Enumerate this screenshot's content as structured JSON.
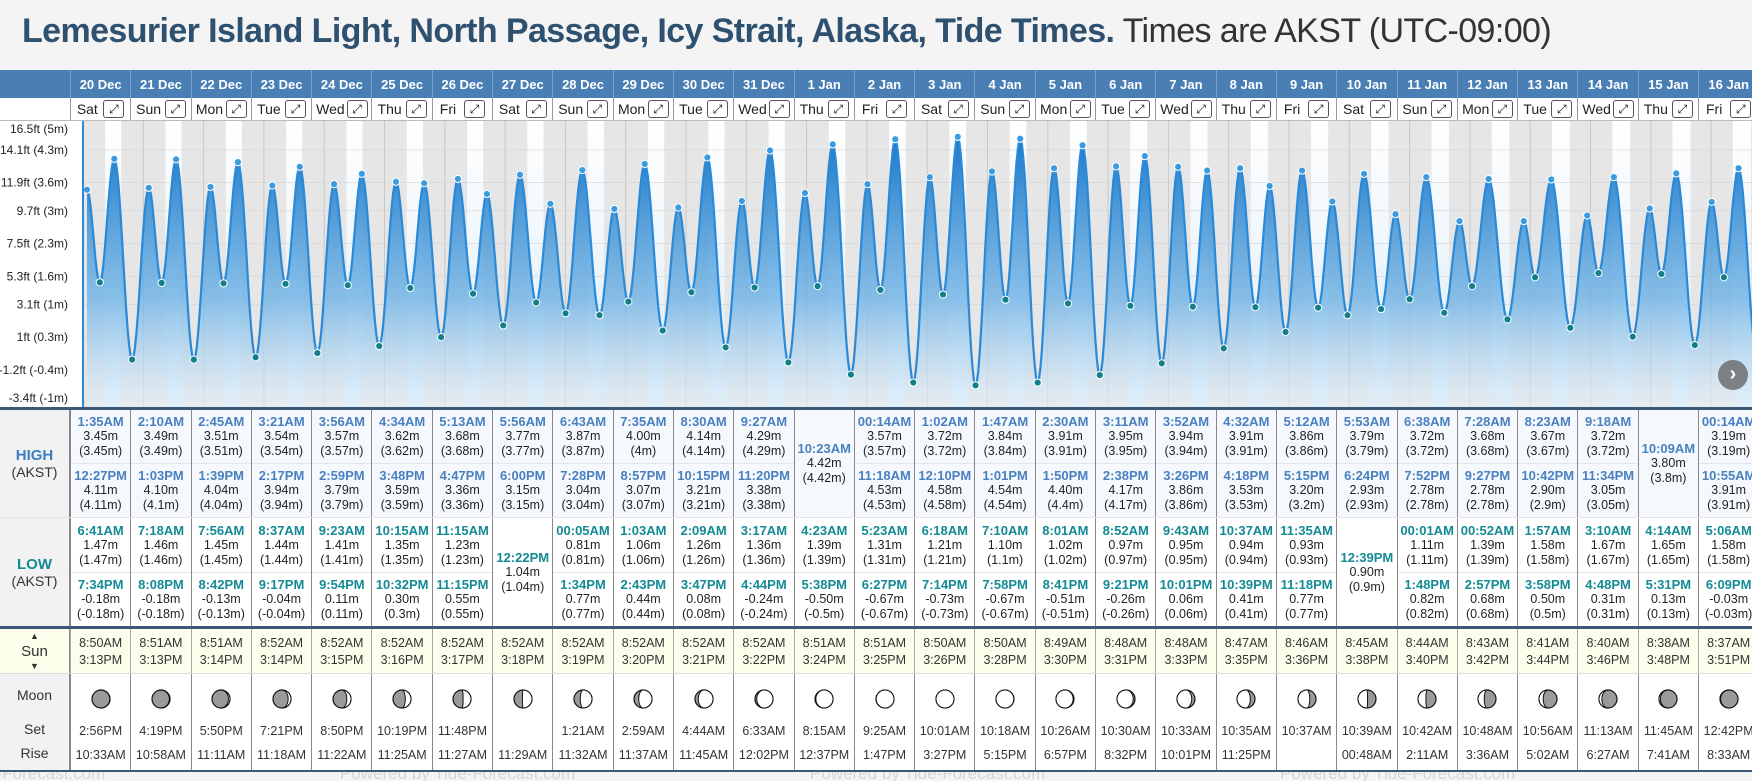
{
  "title": {
    "location": "Lemesurier Island Light, North Passage, Icy Strait, Alaska, Tide Times.",
    "timezone": "Times are AKST (UTC-09:00)"
  },
  "labels": {
    "high": "HIGH",
    "low": "LOW",
    "tz": "(AKST)",
    "sun": "Sun",
    "sun_up": "▲",
    "sun_down": "▼",
    "moon": "Moon",
    "set": "Set",
    "rise": "Rise",
    "expand": "⤢",
    "next": "›"
  },
  "footer": "Powered by Tide-Forecast.com",
  "colors": {
    "header": "#4a7fb5",
    "high": "#4a80c0",
    "low": "#138a94",
    "curve": "#2a8ad8"
  },
  "chart_data": {
    "type": "area",
    "ylabel": "Tide height",
    "y_ticks": [
      "16.5ft (5m)",
      "14.1ft (4.3m)",
      "11.9ft (3.6m)",
      "9.7ft (3m)",
      "7.5ft (2.3m)",
      "5.3ft (1.6m)",
      "3.1ft (1m)",
      "1ft (0.3m)",
      "-1.2ft (-0.4m)",
      "-3.4ft (-1m)"
    ],
    "y_tick_m": [
      5,
      4.3,
      3.6,
      3,
      2.3,
      1.6,
      1,
      0.3,
      -0.4,
      -1
    ],
    "ylim_m": [
      -1,
      5
    ]
  },
  "days": [
    {
      "date": "20 Dec",
      "dow": "Sat",
      "highs": [
        [
          "1:35AM",
          "3.45m",
          "(3.45m)"
        ],
        [
          "12:27PM",
          "4.11m",
          "(4.11m)"
        ]
      ],
      "lows": [
        [
          "6:41AM",
          "1.47m",
          "(1.47m)"
        ],
        [
          "7:34PM",
          "-0.18m",
          "(-0.18m)"
        ]
      ],
      "sunrise": "8:50AM",
      "sunset": "3:13PM",
      "moonset": "2:56PM",
      "moonrise": "10:33AM",
      "moon_phase": 0.03
    },
    {
      "date": "21 Dec",
      "dow": "Sun",
      "highs": [
        [
          "2:10AM",
          "3.49m",
          "(3.49m)"
        ],
        [
          "1:03PM",
          "4.10m",
          "(4.1m)"
        ]
      ],
      "lows": [
        [
          "7:18AM",
          "1.46m",
          "(1.46m)"
        ],
        [
          "8:08PM",
          "-0.18m",
          "(-0.18m)"
        ]
      ],
      "sunrise": "8:51AM",
      "sunset": "3:13PM",
      "moonset": "4:19PM",
      "moonrise": "10:58AM",
      "moon_phase": 0.06
    },
    {
      "date": "22 Dec",
      "dow": "Mon",
      "highs": [
        [
          "2:45AM",
          "3.51m",
          "(3.51m)"
        ],
        [
          "1:39PM",
          "4.04m",
          "(4.04m)"
        ]
      ],
      "lows": [
        [
          "7:56AM",
          "1.45m",
          "(1.45m)"
        ],
        [
          "8:42PM",
          "-0.13m",
          "(-0.13m)"
        ]
      ],
      "sunrise": "8:51AM",
      "sunset": "3:14PM",
      "moonset": "5:50PM",
      "moonrise": "11:11AM",
      "moon_phase": 0.095
    },
    {
      "date": "23 Dec",
      "dow": "Tue",
      "highs": [
        [
          "3:21AM",
          "3.54m",
          "(3.54m)"
        ],
        [
          "2:17PM",
          "3.94m",
          "(3.94m)"
        ]
      ],
      "lows": [
        [
          "8:37AM",
          "1.44m",
          "(1.44m)"
        ],
        [
          "9:17PM",
          "-0.04m",
          "(-0.04m)"
        ]
      ],
      "sunrise": "8:52AM",
      "sunset": "3:14PM",
      "moonset": "7:21PM",
      "moonrise": "11:18AM",
      "moon_phase": 0.13
    },
    {
      "date": "24 Dec",
      "dow": "Wed",
      "highs": [
        [
          "3:56AM",
          "3.57m",
          "(3.57m)"
        ],
        [
          "2:59PM",
          "3.79m",
          "(3.79m)"
        ]
      ],
      "lows": [
        [
          "9:23AM",
          "1.41m",
          "(1.41m)"
        ],
        [
          "9:54PM",
          "0.11m",
          "(0.11m)"
        ]
      ],
      "sunrise": "8:52AM",
      "sunset": "3:15PM",
      "moonset": "8:50PM",
      "moonrise": "11:22AM",
      "moon_phase": 0.16
    },
    {
      "date": "25 Dec",
      "dow": "Thu",
      "highs": [
        [
          "4:34AM",
          "3.62m",
          "(3.62m)"
        ],
        [
          "3:48PM",
          "3.59m",
          "(3.59m)"
        ]
      ],
      "lows": [
        [
          "10:15AM",
          "1.35m",
          "(1.35m)"
        ],
        [
          "10:32PM",
          "0.30m",
          "(0.3m)"
        ]
      ],
      "sunrise": "8:52AM",
      "sunset": "3:16PM",
      "moonset": "10:19PM",
      "moonrise": "11:25AM",
      "moon_phase": 0.19
    },
    {
      "date": "26 Dec",
      "dow": "Fri",
      "highs": [
        [
          "5:13AM",
          "3.68m",
          "(3.68m)"
        ],
        [
          "4:47PM",
          "3.36m",
          "(3.36m)"
        ]
      ],
      "lows": [
        [
          "11:15AM",
          "1.23m",
          "(1.23m)"
        ],
        [
          "11:15PM",
          "0.55m",
          "(0.55m)"
        ]
      ],
      "sunrise": "8:52AM",
      "sunset": "3:17PM",
      "moonset": "11:48PM",
      "moonrise": "11:27AM",
      "moon_phase": 0.23
    },
    {
      "date": "27 Dec",
      "dow": "Sat",
      "highs": [
        [
          "5:56AM",
          "3.77m",
          "(3.77m)"
        ],
        [
          "6:00PM",
          "3.15m",
          "(3.15m)"
        ]
      ],
      "lows": [
        [
          "12:22PM",
          "1.04m",
          "(1.04m)"
        ]
      ],
      "sunrise": "8:52AM",
      "sunset": "3:18PM",
      "moonset": "",
      "moonrise": "11:29AM",
      "moon_phase": 0.26
    },
    {
      "date": "28 Dec",
      "dow": "Sun",
      "highs": [
        [
          "6:43AM",
          "3.87m",
          "(3.87m)"
        ],
        [
          "7:28PM",
          "3.04m",
          "(3.04m)"
        ]
      ],
      "lows": [
        [
          "00:05AM",
          "0.81m",
          "(0.81m)"
        ],
        [
          "1:34PM",
          "0.77m",
          "(0.77m)"
        ]
      ],
      "sunrise": "8:52AM",
      "sunset": "3:19PM",
      "moonset": "1:21AM",
      "moonrise": "11:32AM",
      "moon_phase": 0.3
    },
    {
      "date": "29 Dec",
      "dow": "Mon",
      "highs": [
        [
          "7:35AM",
          "4.00m",
          "(4m)"
        ],
        [
          "8:57PM",
          "3.07m",
          "(3.07m)"
        ]
      ],
      "lows": [
        [
          "1:03AM",
          "1.06m",
          "(1.06m)"
        ],
        [
          "2:43PM",
          "0.44m",
          "(0.44m)"
        ]
      ],
      "sunrise": "8:52AM",
      "sunset": "3:20PM",
      "moonset": "2:59AM",
      "moonrise": "11:37AM",
      "moon_phase": 0.33
    },
    {
      "date": "30 Dec",
      "dow": "Tue",
      "highs": [
        [
          "8:30AM",
          "4.14m",
          "(4.14m)"
        ],
        [
          "10:15PM",
          "3.21m",
          "(3.21m)"
        ]
      ],
      "lows": [
        [
          "2:09AM",
          "1.26m",
          "(1.26m)"
        ],
        [
          "3:47PM",
          "0.08m",
          "(0.08m)"
        ]
      ],
      "sunrise": "8:52AM",
      "sunset": "3:21PM",
      "moonset": "4:44AM",
      "moonrise": "11:45AM",
      "moon_phase": 0.36
    },
    {
      "date": "31 Dec",
      "dow": "Wed",
      "highs": [
        [
          "9:27AM",
          "4.29m",
          "(4.29m)"
        ],
        [
          "11:20PM",
          "3.38m",
          "(3.38m)"
        ]
      ],
      "lows": [
        [
          "3:17AM",
          "1.36m",
          "(1.36m)"
        ],
        [
          "4:44PM",
          "-0.24m",
          "(-0.24m)"
        ]
      ],
      "sunrise": "8:52AM",
      "sunset": "3:22PM",
      "moonset": "6:33AM",
      "moonrise": "12:02PM",
      "moon_phase": 0.4
    },
    {
      "date": "1 Jan",
      "dow": "Thu",
      "highs": [
        [
          "10:23AM",
          "4.42m",
          "(4.42m)"
        ]
      ],
      "lows": [
        [
          "4:23AM",
          "1.39m",
          "(1.39m)"
        ],
        [
          "5:38PM",
          "-0.50m",
          "(-0.5m)"
        ]
      ],
      "sunrise": "8:51AM",
      "sunset": "3:24PM",
      "moonset": "8:15AM",
      "moonrise": "12:37PM",
      "moon_phase": 0.43
    },
    {
      "date": "2 Jan",
      "dow": "Fri",
      "highs": [
        [
          "00:14AM",
          "3.57m",
          "(3.57m)"
        ],
        [
          "11:18AM",
          "4.53m",
          "(4.53m)"
        ]
      ],
      "lows": [
        [
          "5:23AM",
          "1.31m",
          "(1.31m)"
        ],
        [
          "6:27PM",
          "-0.67m",
          "(-0.67m)"
        ]
      ],
      "sunrise": "8:51AM",
      "sunset": "3:25PM",
      "moonset": "9:25AM",
      "moonrise": "1:47PM",
      "moon_phase": 0.47
    },
    {
      "date": "3 Jan",
      "dow": "Sat",
      "highs": [
        [
          "1:02AM",
          "3.72m",
          "(3.72m)"
        ],
        [
          "12:10PM",
          "4.58m",
          "(4.58m)"
        ]
      ],
      "lows": [
        [
          "6:18AM",
          "1.21m",
          "(1.21m)"
        ],
        [
          "7:14PM",
          "-0.73m",
          "(-0.73m)"
        ]
      ],
      "sunrise": "8:50AM",
      "sunset": "3:26PM",
      "moonset": "10:01AM",
      "moonrise": "3:27PM",
      "moon_phase": 0.5
    },
    {
      "date": "4 Jan",
      "dow": "Sun",
      "highs": [
        [
          "1:47AM",
          "3.84m",
          "(3.84m)"
        ],
        [
          "1:01PM",
          "4.54m",
          "(4.54m)"
        ]
      ],
      "lows": [
        [
          "7:10AM",
          "1.10m",
          "(1.1m)"
        ],
        [
          "7:58PM",
          "-0.67m",
          "(-0.67m)"
        ]
      ],
      "sunrise": "8:50AM",
      "sunset": "3:28PM",
      "moonset": "10:18AM",
      "moonrise": "5:15PM",
      "moon_phase": 0.535
    },
    {
      "date": "5 Jan",
      "dow": "Mon",
      "highs": [
        [
          "2:30AM",
          "3.91m",
          "(3.91m)"
        ],
        [
          "1:50PM",
          "4.40m",
          "(4.4m)"
        ]
      ],
      "lows": [
        [
          "8:01AM",
          "1.02m",
          "(1.02m)"
        ],
        [
          "8:41PM",
          "-0.51m",
          "(-0.51m)"
        ]
      ],
      "sunrise": "8:49AM",
      "sunset": "3:30PM",
      "moonset": "10:26AM",
      "moonrise": "6:57PM",
      "moon_phase": 0.57
    },
    {
      "date": "6 Jan",
      "dow": "Tue",
      "highs": [
        [
          "3:11AM",
          "3.95m",
          "(3.95m)"
        ],
        [
          "2:38PM",
          "4.17m",
          "(4.17m)"
        ]
      ],
      "lows": [
        [
          "8:52AM",
          "0.97m",
          "(0.97m)"
        ],
        [
          "9:21PM",
          "-0.26m",
          "(-0.26m)"
        ]
      ],
      "sunrise": "8:48AM",
      "sunset": "3:31PM",
      "moonset": "10:30AM",
      "moonrise": "8:32PM",
      "moon_phase": 0.6
    },
    {
      "date": "7 Jan",
      "dow": "Wed",
      "highs": [
        [
          "3:52AM",
          "3.94m",
          "(3.94m)"
        ],
        [
          "3:26PM",
          "3.86m",
          "(3.86m)"
        ]
      ],
      "lows": [
        [
          "9:43AM",
          "0.95m",
          "(0.95m)"
        ],
        [
          "10:01PM",
          "0.06m",
          "(0.06m)"
        ]
      ],
      "sunrise": "8:48AM",
      "sunset": "3:33PM",
      "moonset": "10:33AM",
      "moonrise": "10:01PM",
      "moon_phase": 0.64
    },
    {
      "date": "8 Jan",
      "dow": "Thu",
      "highs": [
        [
          "4:32AM",
          "3.91m",
          "(3.91m)"
        ],
        [
          "4:18PM",
          "3.53m",
          "(3.53m)"
        ]
      ],
      "lows": [
        [
          "10:37AM",
          "0.94m",
          "(0.94m)"
        ],
        [
          "10:39PM",
          "0.41m",
          "(0.41m)"
        ]
      ],
      "sunrise": "8:47AM",
      "sunset": "3:35PM",
      "moonset": "10:35AM",
      "moonrise": "11:25PM",
      "moon_phase": 0.67
    },
    {
      "date": "9 Jan",
      "dow": "Fri",
      "highs": [
        [
          "5:12AM",
          "3.86m",
          "(3.86m)"
        ],
        [
          "5:15PM",
          "3.20m",
          "(3.2m)"
        ]
      ],
      "lows": [
        [
          "11:35AM",
          "0.93m",
          "(0.93m)"
        ],
        [
          "11:18PM",
          "0.77m",
          "(0.77m)"
        ]
      ],
      "sunrise": "8:46AM",
      "sunset": "3:36PM",
      "moonset": "10:37AM",
      "moonrise": "",
      "moon_phase": 0.7
    },
    {
      "date": "10 Jan",
      "dow": "Sat",
      "highs": [
        [
          "5:53AM",
          "3.79m",
          "(3.79m)"
        ],
        [
          "6:24PM",
          "2.93m",
          "(2.93m)"
        ]
      ],
      "lows": [
        [
          "12:39PM",
          "0.90m",
          "(0.9m)"
        ]
      ],
      "sunrise": "8:45AM",
      "sunset": "3:38PM",
      "moonset": "10:39AM",
      "moonrise": "00:48AM",
      "moon_phase": 0.74
    },
    {
      "date": "11 Jan",
      "dow": "Sun",
      "highs": [
        [
          "6:38AM",
          "3.72m",
          "(3.72m)"
        ],
        [
          "7:52PM",
          "2.78m",
          "(2.78m)"
        ]
      ],
      "lows": [
        [
          "00:01AM",
          "1.11m",
          "(1.11m)"
        ],
        [
          "1:48PM",
          "0.82m",
          "(0.82m)"
        ]
      ],
      "sunrise": "8:44AM",
      "sunset": "3:40PM",
      "moonset": "10:42AM",
      "moonrise": "2:11AM",
      "moon_phase": 0.77
    },
    {
      "date": "12 Jan",
      "dow": "Mon",
      "highs": [
        [
          "7:28AM",
          "3.68m",
          "(3.68m)"
        ],
        [
          "9:27PM",
          "2.78m",
          "(2.78m)"
        ]
      ],
      "lows": [
        [
          "00:52AM",
          "1.39m",
          "(1.39m)"
        ],
        [
          "2:57PM",
          "0.68m",
          "(0.68m)"
        ]
      ],
      "sunrise": "8:43AM",
      "sunset": "3:42PM",
      "moonset": "10:48AM",
      "moonrise": "3:36AM",
      "moon_phase": 0.8
    },
    {
      "date": "13 Jan",
      "dow": "Tue",
      "highs": [
        [
          "8:23AM",
          "3.67m",
          "(3.67m)"
        ],
        [
          "10:42PM",
          "2.90m",
          "(2.9m)"
        ]
      ],
      "lows": [
        [
          "1:57AM",
          "1.58m",
          "(1.58m)"
        ],
        [
          "3:58PM",
          "0.50m",
          "(0.5m)"
        ]
      ],
      "sunrise": "8:41AM",
      "sunset": "3:44PM",
      "moonset": "10:56AM",
      "moonrise": "5:02AM",
      "moon_phase": 0.84
    },
    {
      "date": "14 Jan",
      "dow": "Wed",
      "highs": [
        [
          "9:18AM",
          "3.72m",
          "(3.72m)"
        ],
        [
          "11:34PM",
          "3.05m",
          "(3.05m)"
        ]
      ],
      "lows": [
        [
          "3:10AM",
          "1.67m",
          "(1.67m)"
        ],
        [
          "4:48PM",
          "0.31m",
          "(0.31m)"
        ]
      ],
      "sunrise": "8:40AM",
      "sunset": "3:46PM",
      "moonset": "11:13AM",
      "moonrise": "6:27AM",
      "moon_phase": 0.87
    },
    {
      "date": "15 Jan",
      "dow": "Thu",
      "highs": [
        [
          "10:09AM",
          "3.80m",
          "(3.8m)"
        ]
      ],
      "lows": [
        [
          "4:14AM",
          "1.65m",
          "(1.65m)"
        ],
        [
          "5:31PM",
          "0.13m",
          "(0.13m)"
        ]
      ],
      "sunrise": "8:38AM",
      "sunset": "3:48PM",
      "moonset": "11:45AM",
      "moonrise": "7:41AM",
      "moon_phase": 0.91
    },
    {
      "date": "16 Jan",
      "dow": "Fri",
      "highs": [
        [
          "00:14AM",
          "3.19m",
          "(3.19m)"
        ],
        [
          "10:55AM",
          "3.91m",
          "(3.91m)"
        ]
      ],
      "lows": [
        [
          "5:06AM",
          "1.58m",
          "(1.58m)"
        ],
        [
          "6:09PM",
          "-0.03m",
          "(-0.03m)"
        ]
      ],
      "sunrise": "8:37AM",
      "sunset": "3:51PM",
      "moonset": "12:42PM",
      "moonrise": "8:33AM",
      "moon_phase": 0.94
    }
  ]
}
